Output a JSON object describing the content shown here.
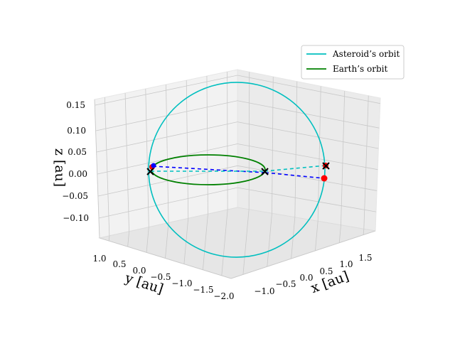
{
  "chart_data": {
    "type": "line",
    "projection": "3d",
    "grid": true,
    "legend_placement": "upper-right",
    "xlabel": "x [au]",
    "ylabel": "y [au]",
    "zlabel": "z [au]",
    "x_ticks": [
      "−1.0",
      "−0.5",
      "0.0",
      "0.5",
      "1.0",
      "1.5"
    ],
    "y_ticks": [
      "1.0",
      "0.5",
      "0.0",
      "−0.5",
      "−1.0",
      "−1.5",
      "−2.0"
    ],
    "z_ticks": [
      "0.15",
      "0.10",
      "0.05",
      "0.00",
      "−0.05",
      "−0.10"
    ],
    "xlim": [
      -1.2,
      1.7
    ],
    "ylim": [
      -2.0,
      1.2
    ],
    "zlim": [
      -0.13,
      0.17
    ],
    "series": [
      {
        "name": "Asteroid’s orbit",
        "color": "#00bfbf",
        "style": "solid"
      },
      {
        "name": "Earth’s orbit",
        "color": "#008000",
        "style": "solid"
      }
    ],
    "transfer_lines": [
      {
        "color": "#0000ff",
        "style": "dashed"
      },
      {
        "color": "#00bfbf",
        "style": "dashed"
      }
    ],
    "markers": [
      {
        "kind": "cross",
        "color": "#000000"
      },
      {
        "kind": "cross",
        "color": "#000000"
      },
      {
        "kind": "cross",
        "color": "#000000"
      },
      {
        "kind": "dot",
        "color": "#ff0000"
      },
      {
        "kind": "dot",
        "color": "#ff0000"
      },
      {
        "kind": "dot",
        "color": "#0000ff"
      }
    ]
  }
}
